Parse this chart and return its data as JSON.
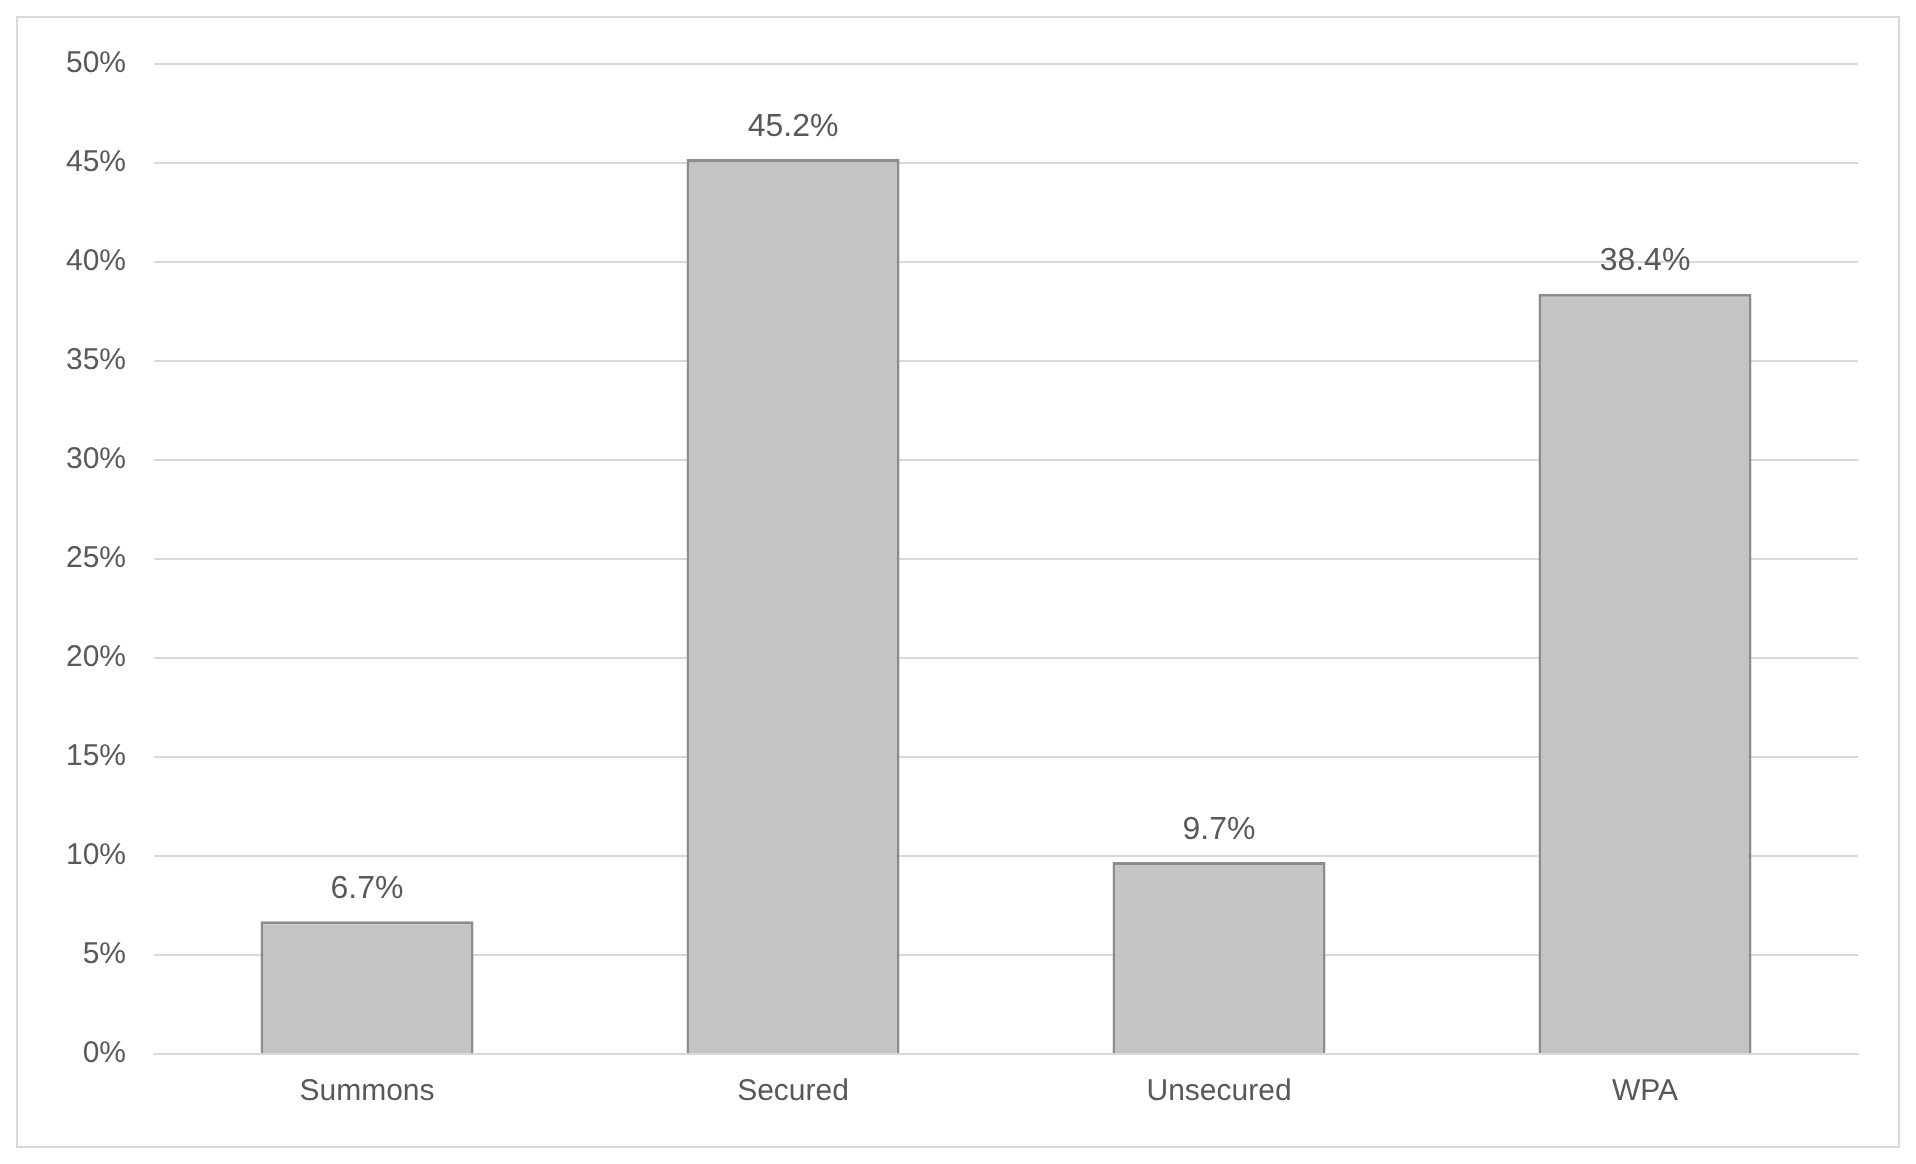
{
  "chart_data": {
    "type": "bar",
    "categories": [
      "Summons",
      "Secured",
      "Unsecured",
      "WPA"
    ],
    "values": [
      6.7,
      45.2,
      9.7,
      38.4
    ],
    "color": "#c4c4c4",
    "value_labels": [
      "6.7%",
      "45.2%",
      "9.7%",
      "38.4%"
    ],
    "ylim": [
      0,
      50
    ],
    "yticks": [
      {
        "value": 0,
        "label": "0%"
      },
      {
        "value": 5,
        "label": "5%"
      },
      {
        "value": 10,
        "label": "10%"
      },
      {
        "value": 15,
        "label": "15%"
      },
      {
        "value": 20,
        "label": "20%"
      },
      {
        "value": 25,
        "label": "25%"
      },
      {
        "value": 30,
        "label": "30%"
      },
      {
        "value": 35,
        "label": "35%"
      },
      {
        "value": 40,
        "label": "40%"
      },
      {
        "value": 45,
        "label": "45%"
      },
      {
        "value": 50,
        "label": "50%"
      }
    ],
    "grid": "y",
    "legend": false
  }
}
